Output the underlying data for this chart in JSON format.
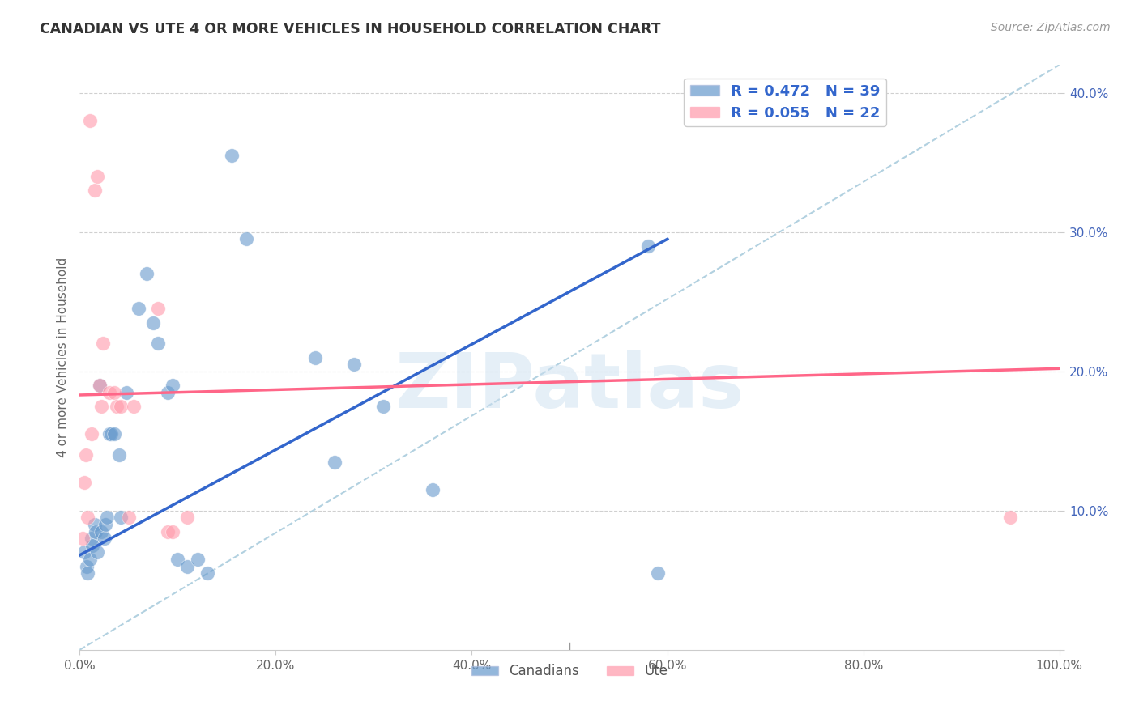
{
  "title": "CANADIAN VS UTE 4 OR MORE VEHICLES IN HOUSEHOLD CORRELATION CHART",
  "source": "Source: ZipAtlas.com",
  "ylabel": "4 or more Vehicles in Household",
  "xlabel": "",
  "xlim": [
    0,
    1.0
  ],
  "ylim": [
    0,
    0.42
  ],
  "xticks": [
    0.0,
    0.2,
    0.4,
    0.6,
    0.8,
    1.0
  ],
  "yticks": [
    0.0,
    0.1,
    0.2,
    0.3,
    0.4
  ],
  "xticklabels": [
    "0.0%",
    "20.0%",
    "40.0%",
    "60.0%",
    "80.0%",
    "100.0%"
  ],
  "yticklabels": [
    "",
    "10.0%",
    "20.0%",
    "30.0%",
    "40.0%"
  ],
  "canadian_R": 0.472,
  "canadian_N": 39,
  "ute_R": 0.055,
  "ute_N": 22,
  "watermark": "ZIPatlas",
  "canadian_color": "#6699cc",
  "ute_color": "#ff99aa",
  "canadian_line_color": "#3366cc",
  "ute_line_color": "#ff6688",
  "dashed_line_color": "#aaccdd",
  "canadian_line": [
    [
      0.0,
      0.068
    ],
    [
      0.6,
      0.295
    ]
  ],
  "ute_line": [
    [
      0.0,
      0.183
    ],
    [
      1.0,
      0.202
    ]
  ],
  "canadian_points": [
    [
      0.005,
      0.07
    ],
    [
      0.007,
      0.06
    ],
    [
      0.008,
      0.055
    ],
    [
      0.01,
      0.065
    ],
    [
      0.012,
      0.08
    ],
    [
      0.013,
      0.075
    ],
    [
      0.015,
      0.09
    ],
    [
      0.016,
      0.085
    ],
    [
      0.018,
      0.07
    ],
    [
      0.02,
      0.19
    ],
    [
      0.022,
      0.085
    ],
    [
      0.025,
      0.08
    ],
    [
      0.026,
      0.09
    ],
    [
      0.028,
      0.095
    ],
    [
      0.03,
      0.155
    ],
    [
      0.032,
      0.155
    ],
    [
      0.035,
      0.155
    ],
    [
      0.04,
      0.14
    ],
    [
      0.042,
      0.095
    ],
    [
      0.048,
      0.185
    ],
    [
      0.06,
      0.245
    ],
    [
      0.068,
      0.27
    ],
    [
      0.075,
      0.235
    ],
    [
      0.08,
      0.22
    ],
    [
      0.09,
      0.185
    ],
    [
      0.095,
      0.19
    ],
    [
      0.1,
      0.065
    ],
    [
      0.11,
      0.06
    ],
    [
      0.12,
      0.065
    ],
    [
      0.13,
      0.055
    ],
    [
      0.155,
      0.355
    ],
    [
      0.17,
      0.295
    ],
    [
      0.24,
      0.21
    ],
    [
      0.26,
      0.135
    ],
    [
      0.28,
      0.205
    ],
    [
      0.31,
      0.175
    ],
    [
      0.36,
      0.115
    ],
    [
      0.58,
      0.29
    ],
    [
      0.59,
      0.055
    ]
  ],
  "ute_points": [
    [
      0.003,
      0.08
    ],
    [
      0.005,
      0.12
    ],
    [
      0.006,
      0.14
    ],
    [
      0.008,
      0.095
    ],
    [
      0.01,
      0.38
    ],
    [
      0.012,
      0.155
    ],
    [
      0.015,
      0.33
    ],
    [
      0.018,
      0.34
    ],
    [
      0.02,
      0.19
    ],
    [
      0.022,
      0.175
    ],
    [
      0.024,
      0.22
    ],
    [
      0.03,
      0.185
    ],
    [
      0.035,
      0.185
    ],
    [
      0.038,
      0.175
    ],
    [
      0.042,
      0.175
    ],
    [
      0.05,
      0.095
    ],
    [
      0.055,
      0.175
    ],
    [
      0.08,
      0.245
    ],
    [
      0.09,
      0.085
    ],
    [
      0.095,
      0.085
    ],
    [
      0.11,
      0.095
    ],
    [
      0.95,
      0.095
    ]
  ]
}
